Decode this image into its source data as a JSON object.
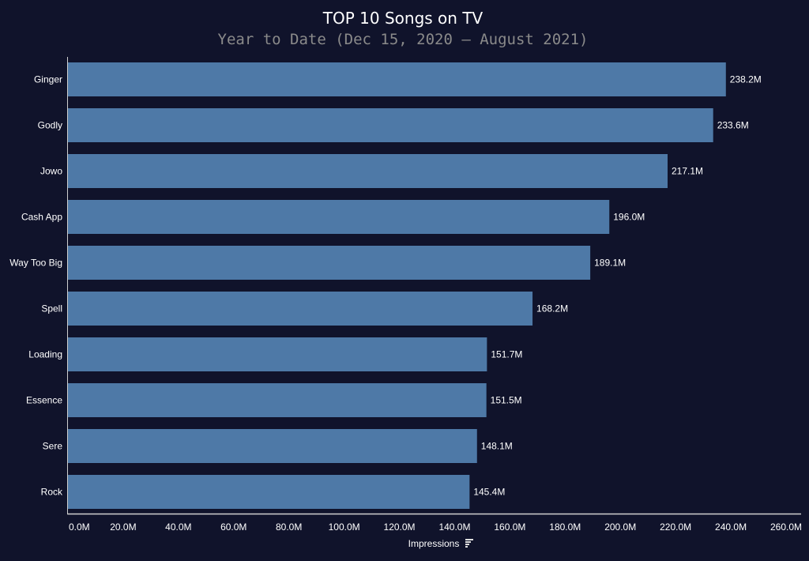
{
  "chart_data": {
    "type": "bar",
    "orientation": "horizontal",
    "title": "TOP 10 Songs on TV",
    "subtitle": "Year to Date (Dec 15, 2020 — August 2021)",
    "xlabel": "Impressions",
    "ylabel": "",
    "categories": [
      "Ginger",
      "Godly",
      "Jowo",
      "Cash App",
      "Way Too Big",
      "Spell",
      "Loading",
      "Essence",
      "Sere",
      "Rock"
    ],
    "values": [
      238.2,
      233.6,
      217.1,
      196.0,
      189.1,
      168.2,
      151.7,
      151.5,
      148.1,
      145.4
    ],
    "data_labels": [
      "238.2M",
      "233.6M",
      "217.1M",
      "196.0M",
      "189.1M",
      "168.2M",
      "151.7M",
      "151.5M",
      "148.1M",
      "145.4M"
    ],
    "xlim": [
      0,
      260
    ],
    "xticks": [
      0,
      20,
      40,
      60,
      80,
      100,
      120,
      140,
      160,
      180,
      200,
      220,
      240,
      260
    ],
    "xtick_labels": [
      "0.0M",
      "20.0M",
      "40.0M",
      "60.0M",
      "80.0M",
      "100.0M",
      "120.0M",
      "140.0M",
      "160.0M",
      "180.0M",
      "200.0M",
      "220.0M",
      "240.0M",
      "260.0M"
    ],
    "grid": false,
    "legend": "none",
    "colors": {
      "bar": "#4e79a7",
      "background": "#10132b",
      "text": "#ffffff",
      "subtitle": "#8a8a8a"
    },
    "xlabel_icon": "sort-icon"
  }
}
